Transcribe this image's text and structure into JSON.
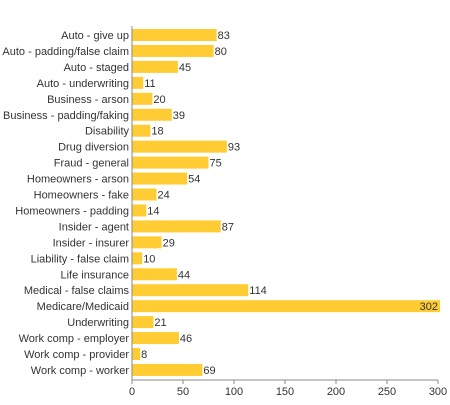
{
  "chart_data": {
    "type": "bar",
    "orientation": "horizontal",
    "categories": [
      "Auto - give up",
      "Auto - padding/false claim",
      "Auto - staged",
      "Auto - underwriting",
      "Business - arson",
      "Business - padding/faking",
      "Disability",
      "Drug diversion",
      "Fraud - general",
      "Homeowners - arson",
      "Homeowners - fake",
      "Homeowners - padding",
      "Insider - agent",
      "Insider - insurer",
      "Liability - false claim",
      "Life insurance",
      "Medical - false claims",
      "Medicare/Medicaid",
      "Underwriting",
      "Work comp - employer",
      "Work comp - provider",
      "Work comp - worker"
    ],
    "values": [
      83,
      80,
      45,
      11,
      20,
      39,
      18,
      93,
      75,
      54,
      24,
      14,
      87,
      29,
      10,
      44,
      114,
      302,
      21,
      46,
      8,
      69
    ],
    "xlim": [
      0,
      300
    ],
    "xticks": [
      0,
      50,
      100,
      150,
      200,
      250,
      300
    ],
    "grid": false,
    "legend": "none",
    "colors": {
      "bar": "#ffcc33",
      "axis": "#888888",
      "text": "#333333"
    }
  }
}
